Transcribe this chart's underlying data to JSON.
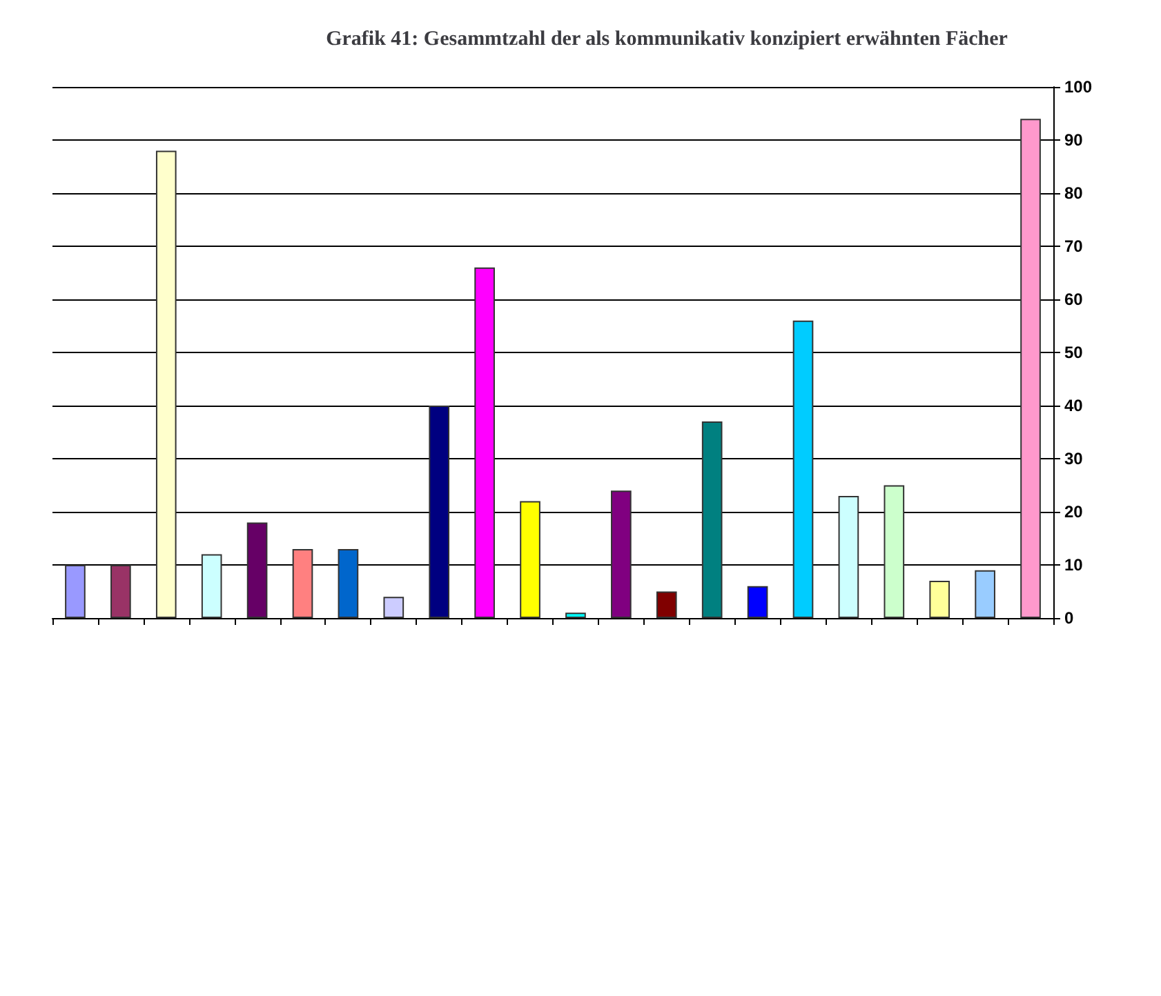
{
  "chart_data": {
    "type": "bar",
    "title": "Grafik 41: Gesammtzahl der als kommunikativ konzipiert erwähnten Fächer",
    "categories": [
      null,
      null,
      null,
      null,
      null,
      null,
      null,
      null,
      null,
      null,
      null,
      null,
      null,
      null,
      null,
      null,
      null,
      null,
      null,
      null,
      null,
      null
    ],
    "values": [
      10,
      10,
      88,
      12,
      18,
      13,
      13,
      4,
      40,
      66,
      22,
      1,
      24,
      5,
      37,
      6,
      56,
      23,
      25,
      7,
      9,
      94
    ],
    "colors": [
      "#9999ff",
      "#993366",
      "#ffffcc",
      "#ccffff",
      "#660066",
      "#ff8080",
      "#0066cc",
      "#ccccff",
      "#000080",
      "#ff00ff",
      "#ffff00",
      "#00ffff",
      "#800080",
      "#800000",
      "#008080",
      "#0000ff",
      "#00ccff",
      "#ccffff",
      "#ccffcc",
      "#ffff99",
      "#99ccff",
      "#ff99cc"
    ],
    "ylim": [
      0,
      100
    ],
    "yticks": [
      0,
      10,
      20,
      30,
      40,
      50,
      60,
      70,
      80,
      90,
      100
    ],
    "grid": "y"
  }
}
